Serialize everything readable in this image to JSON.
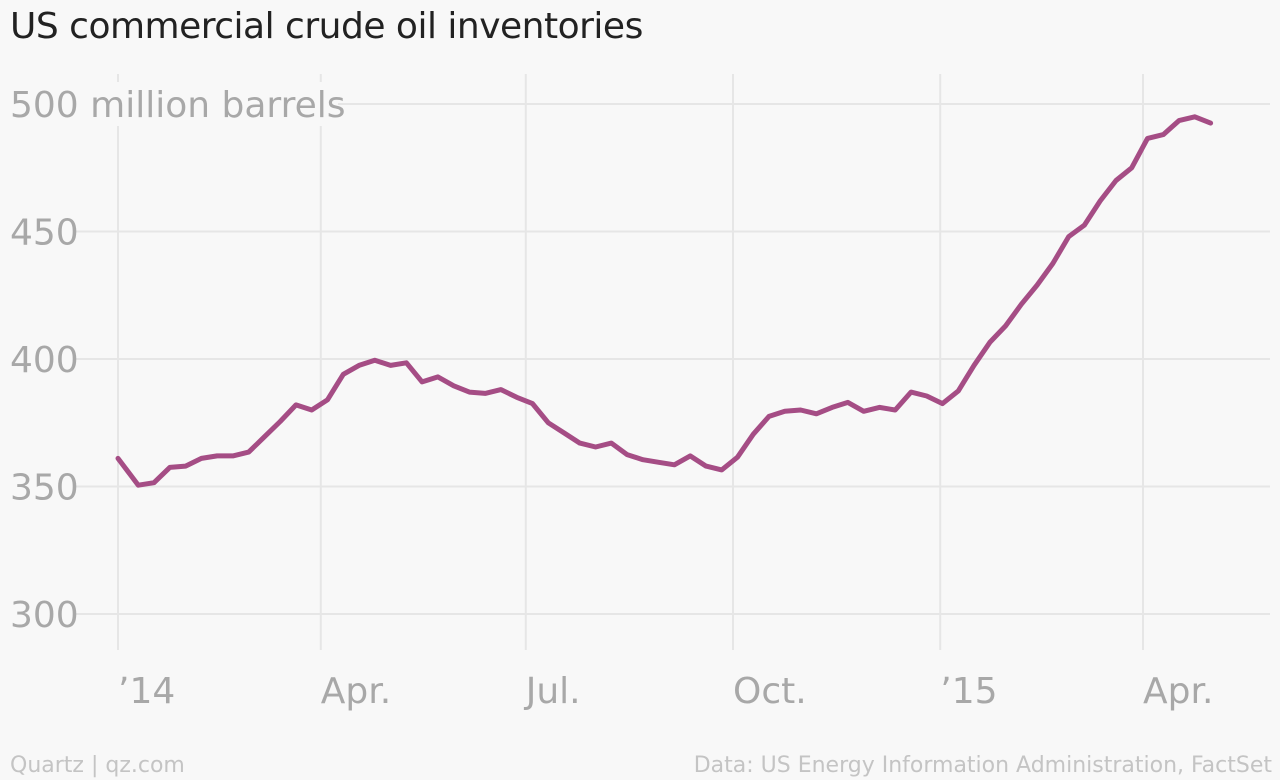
{
  "chart_data": {
    "type": "line",
    "title": "US commercial crude oil inventories",
    "ylabel": "million barrels",
    "top_tick_label": "500 million barrels",
    "y_ticks": [
      300,
      350,
      400,
      450,
      500
    ],
    "ylim": [
      300,
      500
    ],
    "x_ticks": [
      {
        "label": "’14",
        "date": "2014-01-01"
      },
      {
        "label": "Apr.",
        "date": "2014-04-01"
      },
      {
        "label": "Jul.",
        "date": "2014-07-01"
      },
      {
        "label": "Oct.",
        "date": "2014-10-01"
      },
      {
        "label": "’15",
        "date": "2015-01-01"
      },
      {
        "label": "Apr.",
        "date": "2015-04-01"
      }
    ],
    "grid": true,
    "line_color": "#a54d85",
    "series": [
      {
        "x": [
          "2014-01-01",
          "2014-01-10",
          "2014-01-17",
          "2014-01-24",
          "2014-01-31",
          "2014-02-07",
          "2014-02-14",
          "2014-02-21",
          "2014-02-28",
          "2014-03-07",
          "2014-03-14",
          "2014-03-21",
          "2014-03-28",
          "2014-04-04",
          "2014-04-11",
          "2014-04-18",
          "2014-04-25",
          "2014-05-02",
          "2014-05-09",
          "2014-05-16",
          "2014-05-23",
          "2014-05-30",
          "2014-06-06",
          "2014-06-13",
          "2014-06-20",
          "2014-06-27",
          "2014-07-04",
          "2014-07-11",
          "2014-07-18",
          "2014-07-25",
          "2014-08-01",
          "2014-08-08",
          "2014-08-15",
          "2014-08-22",
          "2014-08-29",
          "2014-09-05",
          "2014-09-12",
          "2014-09-19",
          "2014-09-26",
          "2014-10-03",
          "2014-10-10",
          "2014-10-17",
          "2014-10-24",
          "2014-10-31",
          "2014-11-07",
          "2014-11-14",
          "2014-11-21",
          "2014-11-28",
          "2014-12-05",
          "2014-12-12",
          "2014-12-19",
          "2014-12-26",
          "2015-01-02",
          "2015-01-09",
          "2015-01-16",
          "2015-01-23",
          "2015-01-30",
          "2015-02-06",
          "2015-02-13",
          "2015-02-20",
          "2015-02-27",
          "2015-03-06",
          "2015-03-13",
          "2015-03-20",
          "2015-03-27",
          "2015-04-03",
          "2015-04-10",
          "2015-04-17",
          "2015-04-24",
          "2015-05-01"
        ],
        "values": [
          361,
          350.5,
          351.5,
          357.5,
          358,
          361,
          362,
          362,
          363.5,
          369.5,
          375.5,
          382,
          380,
          384,
          394,
          397.5,
          399.5,
          397.5,
          398.5,
          391,
          393,
          389.5,
          387,
          386.5,
          388,
          385,
          382.5,
          375,
          371,
          367,
          365.5,
          367,
          362.5,
          360.5,
          359.5,
          358.5,
          362,
          358,
          356.5,
          361.5,
          370.5,
          377.5,
          379.5,
          380,
          378.5,
          381,
          383,
          379.5,
          381,
          380,
          387,
          385.5,
          382.5,
          387.5,
          397.5,
          406.5,
          413,
          421.5,
          429,
          437.5,
          448,
          452.5,
          462,
          470,
          475,
          486.5,
          488,
          493.5,
          495,
          492.5
        ]
      }
    ]
  },
  "footer": {
    "source_left": "Quartz | qz.com",
    "source_right": "Data: US Energy Information Administration, FactSet"
  }
}
